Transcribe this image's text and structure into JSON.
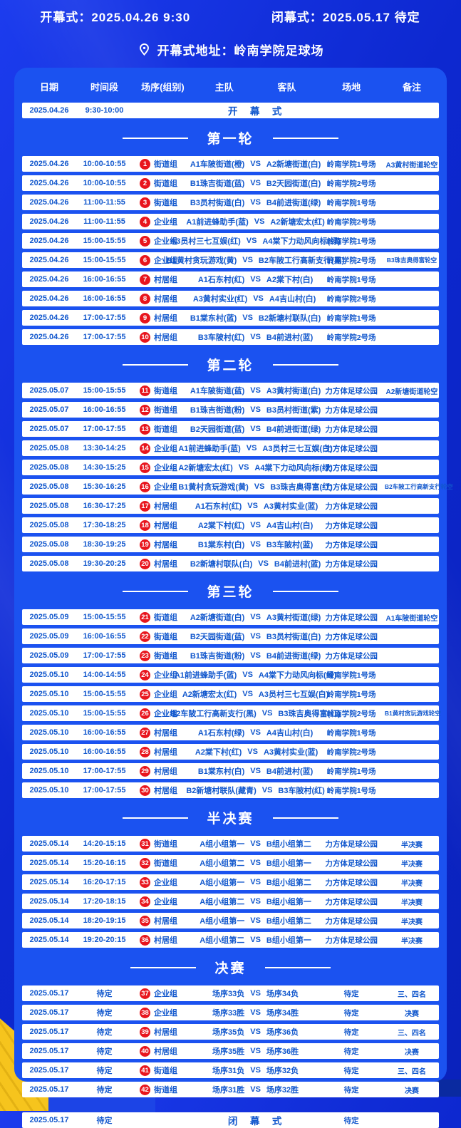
{
  "header": {
    "opening_label": "开幕式：2025.04.26  9:30",
    "closing_label": "闭幕式：2025.05.17  待定",
    "address_label": "开幕式地址：岭南学院足球场",
    "pin_icon": "location-pin"
  },
  "colors": {
    "bg-blue-1": "#1c3cee",
    "bg-blue-2": "#0d28d0",
    "bg-blue-3": "#0a22bc",
    "panel-blue": "#1b52f0",
    "text-blue": "#1157cd",
    "badge-red": "#e8151d",
    "navy": "#0a2aa0",
    "gold": "#f6c41d"
  },
  "table": {
    "columns": {
      "date": "日期",
      "time": "时间段",
      "group": "场序(组别)",
      "home": "主队",
      "away": "客队",
      "venue": "场地",
      "note": "备注"
    },
    "vs_label": "VS",
    "opening_row": {
      "date": "2025.04.26",
      "time": "9:30-10:00",
      "title": "开　幕　式"
    },
    "closing_row": {
      "date": "2025.05.17",
      "time": "待定",
      "title": "闭　幕　式",
      "venue": "待定"
    },
    "sections": [
      {
        "title": "第一轮",
        "rows": [
          {
            "date": "2025.04.26",
            "time": "10:00-10:55",
            "no": "1",
            "group": "街道组",
            "home": "A1车陂街道(橙)",
            "away": "A2新塘街道(白)",
            "venue": "岭南学院1号场",
            "note": "A3黄村街道轮空"
          },
          {
            "date": "2025.04.26",
            "time": "10:00-10:55",
            "no": "2",
            "group": "街道组",
            "home": "B1珠吉街道(蓝)",
            "away": "B2天园街道(白)",
            "venue": "岭南学院2号场",
            "note": ""
          },
          {
            "date": "2025.04.26",
            "time": "11:00-11:55",
            "no": "3",
            "group": "街道组",
            "home": "B3员村街道(白)",
            "away": "B4前进街道(绿)",
            "venue": "岭南学院1号场",
            "note": ""
          },
          {
            "date": "2025.04.26",
            "time": "11:00-11:55",
            "no": "4",
            "group": "企业组",
            "home": "A1前进蜂助手(蓝)",
            "away": "A2新塘宏太(红)",
            "venue": "岭南学院2号场",
            "note": ""
          },
          {
            "date": "2025.04.26",
            "time": "15:00-15:55",
            "no": "5",
            "group": "企业组",
            "home": "A3员村三七互娱(红)",
            "away": "A4棠下力动风向标(绿)",
            "venue": "岭南学院1号场",
            "note": ""
          },
          {
            "date": "2025.04.26",
            "time": "15:00-15:55",
            "no": "6",
            "group": "企业组",
            "home": "B1黄村贪玩游戏(黄)",
            "away": "B2车陂工行高新支行(黑)",
            "venue": "岭南学院2号场",
            "note": "B3珠吉奥得富轮空"
          },
          {
            "date": "2025.04.26",
            "time": "16:00-16:55",
            "no": "7",
            "group": "村居组",
            "home": "A1石东村(红)",
            "away": "A2棠下村(白)",
            "venue": "岭南学院1号场",
            "note": ""
          },
          {
            "date": "2025.04.26",
            "time": "16:00-16:55",
            "no": "8",
            "group": "村居组",
            "home": "A3黄村实业(红)",
            "away": "A4吉山村(白)",
            "venue": "岭南学院2号场",
            "note": ""
          },
          {
            "date": "2025.04.26",
            "time": "17:00-17:55",
            "no": "9",
            "group": "村居组",
            "home": "B1棠东村(蓝)",
            "away": "B2新塘村联队(白)",
            "venue": "岭南学院1号场",
            "note": ""
          },
          {
            "date": "2025.04.26",
            "time": "17:00-17:55",
            "no": "10",
            "group": "村居组",
            "home": "B3车陂村(红)",
            "away": "B4前进村(蓝)",
            "venue": "岭南学院2号场",
            "note": ""
          }
        ]
      },
      {
        "title": "第二轮",
        "rows": [
          {
            "date": "2025.05.07",
            "time": "15:00-15:55",
            "no": "11",
            "group": "街道组",
            "home": "A1车陂街道(蓝)",
            "away": "A3黄村街道(白)",
            "venue": "力方体足球公园",
            "note": "A2新塘街道轮空"
          },
          {
            "date": "2025.05.07",
            "time": "16:00-16:55",
            "no": "12",
            "group": "街道组",
            "home": "B1珠吉街道(粉)",
            "away": "B3员村街道(紫)",
            "venue": "力方体足球公园",
            "note": ""
          },
          {
            "date": "2025.05.07",
            "time": "17:00-17:55",
            "no": "13",
            "group": "街道组",
            "home": "B2天园街道(蓝)",
            "away": "B4前进街道(绿)",
            "venue": "力方体足球公园",
            "note": ""
          },
          {
            "date": "2025.05.08",
            "time": "13:30-14:25",
            "no": "14",
            "group": "企业组",
            "home": "A1前进蜂助手(蓝)",
            "away": "A3员村三七互娱(白)",
            "venue": "力方体足球公园",
            "note": ""
          },
          {
            "date": "2025.05.08",
            "time": "14:30-15:25",
            "no": "15",
            "group": "企业组",
            "home": "A2新塘宏太(红)",
            "away": "A4棠下力动风向标(绿)",
            "venue": "力方体足球公园",
            "note": ""
          },
          {
            "date": "2025.05.08",
            "time": "15:30-16:25",
            "no": "16",
            "group": "企业组",
            "home": "B1黄村贪玩游戏(黄)",
            "away": "B3珠吉奥得富(红)",
            "venue": "力方体足球公园",
            "note": "B2车陂工行高新支行轮空"
          },
          {
            "date": "2025.05.08",
            "time": "16:30-17:25",
            "no": "17",
            "group": "村居组",
            "home": "A1石东村(红)",
            "away": "A3黄村实业(蓝)",
            "venue": "力方体足球公园",
            "note": ""
          },
          {
            "date": "2025.05.08",
            "time": "17:30-18:25",
            "no": "18",
            "group": "村居组",
            "home": "A2棠下村(红)",
            "away": "A4吉山村(白)",
            "venue": "力方体足球公园",
            "note": ""
          },
          {
            "date": "2025.05.08",
            "time": "18:30-19:25",
            "no": "19",
            "group": "村居组",
            "home": "B1棠东村(白)",
            "away": "B3车陂村(蓝)",
            "venue": "力方体足球公园",
            "note": ""
          },
          {
            "date": "2025.05.08",
            "time": "19:30-20:25",
            "no": "20",
            "group": "村居组",
            "home": "B2新塘村联队(白)",
            "away": "B4前进村(蓝)",
            "venue": "力方体足球公园",
            "note": ""
          }
        ]
      },
      {
        "title": "第三轮",
        "rows": [
          {
            "date": "2025.05.09",
            "time": "15:00-15:55",
            "no": "21",
            "group": "街道组",
            "home": "A2新塘街道(白)",
            "away": "A3黄村街道(绿)",
            "venue": "力方体足球公园",
            "note": "A1车陂街道轮空"
          },
          {
            "date": "2025.05.09",
            "time": "16:00-16:55",
            "no": "22",
            "group": "街道组",
            "home": "B2天园街道(蓝)",
            "away": "B3员村街道(白)",
            "venue": "力方体足球公园",
            "note": ""
          },
          {
            "date": "2025.05.09",
            "time": "17:00-17:55",
            "no": "23",
            "group": "街道组",
            "home": "B1珠吉街道(粉)",
            "away": "B4前进街道(绿)",
            "venue": "力方体足球公园",
            "note": ""
          },
          {
            "date": "2025.05.10",
            "time": "14:00-14:55",
            "no": "24",
            "group": "企业组",
            "home": "A1前进蜂助手(蓝)",
            "away": "A4棠下力动风向标(绿)",
            "venue": "岭南学院1号场",
            "note": ""
          },
          {
            "date": "2025.05.10",
            "time": "15:00-15:55",
            "no": "25",
            "group": "企业组",
            "home": "A2新塘宏太(红)",
            "away": "A3员村三七互娱(白)",
            "venue": "岭南学院1号场",
            "note": ""
          },
          {
            "date": "2025.05.10",
            "time": "15:00-15:55",
            "no": "26",
            "group": "企业组",
            "home": "B2车陂工行高新支行(黑)",
            "away": "B3珠吉奥得富(红)",
            "venue": "岭南学院2号场",
            "note": "B1黄村贪玩游戏轮空"
          },
          {
            "date": "2025.05.10",
            "time": "16:00-16:55",
            "no": "27",
            "group": "村居组",
            "home": "A1石东村(绿)",
            "away": "A4吉山村(白)",
            "venue": "岭南学院1号场",
            "note": ""
          },
          {
            "date": "2025.05.10",
            "time": "16:00-16:55",
            "no": "28",
            "group": "村居组",
            "home": "A2棠下村(红)",
            "away": "A3黄村实业(蓝)",
            "venue": "岭南学院2号场",
            "note": ""
          },
          {
            "date": "2025.05.10",
            "time": "17:00-17:55",
            "no": "29",
            "group": "村居组",
            "home": "B1棠东村(白)",
            "away": "B4前进村(蓝)",
            "venue": "岭南学院1号场",
            "note": ""
          },
          {
            "date": "2025.05.10",
            "time": "17:00-17:55",
            "no": "30",
            "group": "村居组",
            "home": "B2新塘村联队(藏青)",
            "away": "B3车陂村(红)",
            "venue": "岭南学院1号场",
            "note": ""
          }
        ]
      },
      {
        "title": "半决赛",
        "rows": [
          {
            "date": "2025.05.14",
            "time": "14:20-15:15",
            "no": "31",
            "group": "街道组",
            "home": "A组小组第一",
            "away": "B组小组第二",
            "venue": "力方体足球公园",
            "note": "半决赛"
          },
          {
            "date": "2025.05.14",
            "time": "15:20-16:15",
            "no": "32",
            "group": "街道组",
            "home": "A组小组第二",
            "away": "B组小组第一",
            "venue": "力方体足球公园",
            "note": "半决赛"
          },
          {
            "date": "2025.05.14",
            "time": "16:20-17:15",
            "no": "33",
            "group": "企业组",
            "home": "A组小组第一",
            "away": "B组小组第二",
            "venue": "力方体足球公园",
            "note": "半决赛"
          },
          {
            "date": "2025.05.14",
            "time": "17:20-18:15",
            "no": "34",
            "group": "企业组",
            "home": "A组小组第二",
            "away": "B组小组第一",
            "venue": "力方体足球公园",
            "note": "半决赛"
          },
          {
            "date": "2025.05.14",
            "time": "18:20-19:15",
            "no": "35",
            "group": "村居组",
            "home": "A组小组第一",
            "away": "B组小组第二",
            "venue": "力方体足球公园",
            "note": "半决赛"
          },
          {
            "date": "2025.05.14",
            "time": "19:20-20:15",
            "no": "36",
            "group": "村居组",
            "home": "A组小组第二",
            "away": "B组小组第一",
            "venue": "力方体足球公园",
            "note": "半决赛"
          }
        ]
      },
      {
        "title": "决赛",
        "rows": [
          {
            "date": "2025.05.17",
            "time": "待定",
            "no": "37",
            "group": "企业组",
            "home": "场序33负",
            "away": "场序34负",
            "venue": "待定",
            "note": "三、四名"
          },
          {
            "date": "2025.05.17",
            "time": "待定",
            "no": "38",
            "group": "企业组",
            "home": "场序33胜",
            "away": "场序34胜",
            "venue": "待定",
            "note": "决赛"
          },
          {
            "date": "2025.05.17",
            "time": "待定",
            "no": "39",
            "group": "村居组",
            "home": "场序35负",
            "away": "场序36负",
            "venue": "待定",
            "note": "三、四名"
          },
          {
            "date": "2025.05.17",
            "time": "待定",
            "no": "40",
            "group": "村居组",
            "home": "场序35胜",
            "away": "场序36胜",
            "venue": "待定",
            "note": "决赛"
          },
          {
            "date": "2025.05.17",
            "time": "待定",
            "no": "41",
            "group": "街道组",
            "home": "场序31负",
            "away": "场序32负",
            "venue": "待定",
            "note": "三、四名"
          },
          {
            "date": "2025.05.17",
            "time": "待定",
            "no": "42",
            "group": "街道组",
            "home": "场序31胜",
            "away": "场序32胜",
            "venue": "待定",
            "note": "决赛"
          }
        ]
      }
    ]
  }
}
